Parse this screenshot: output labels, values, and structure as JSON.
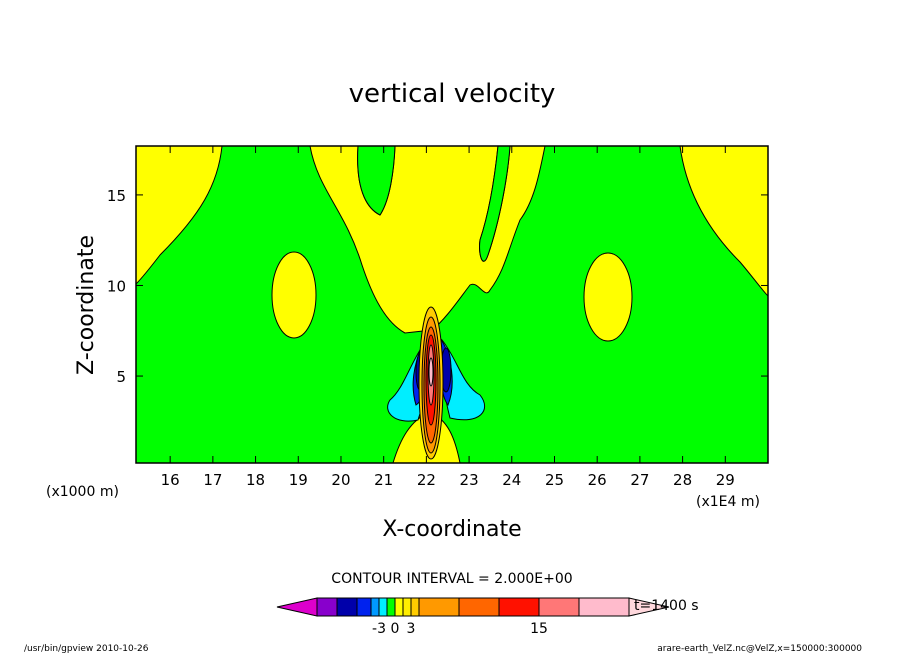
{
  "chart_data": {
    "type": "contour",
    "title": "vertical velocity",
    "xlabel": "X-coordinate",
    "ylabel": "Z-coordinate",
    "x_unit_left": "(x1000 m)",
    "x_unit_right": "(x1E4 m)",
    "xlim": [
      15.2,
      30.0
    ],
    "ylim": [
      0.2,
      17.7
    ],
    "x_ticks": [
      "16",
      "17",
      "18",
      "19",
      "20",
      "21",
      "22",
      "23",
      "24",
      "25",
      "26",
      "27",
      "28",
      "29"
    ],
    "y_ticks": [
      "5",
      "10",
      "15"
    ],
    "contour_interval": "CONTOUR INTERVAL = 2.000E+00",
    "time_label": "t=1400 s",
    "colorbar_labels": [
      "-3",
      "0",
      "3",
      "15"
    ],
    "colorbar_colors": [
      "#dd00cc",
      "#8800cc",
      "#0000aa",
      "#0022ee",
      "#0099ff",
      "#00eeff",
      "#00ff00",
      "#ffff00",
      "#ffee00",
      "#ffcc00",
      "#ff9900",
      "#ff6600",
      "#ff1100",
      "#ff7777",
      "#ffbbcc",
      "#ffd8dd"
    ],
    "colors": {
      "background_zero": "#00ff00",
      "positive_weak": "#ffff00",
      "positive_mid": "#ffcc00",
      "positive_strong": "#ff6600",
      "positive_peak": "#ff1100",
      "positive_core": "#ff7777",
      "negative_weak": "#00eeff",
      "negative_mid": "#0022ee",
      "negative_strong": "#0000aa"
    },
    "regions": [
      {
        "name": "upper-left-updraft",
        "sign": "positive"
      },
      {
        "name": "upper-right-updraft",
        "sign": "positive"
      },
      {
        "name": "left-cell",
        "sign": "positive",
        "center": [
          18.8,
          9.6
        ]
      },
      {
        "name": "right-cell",
        "sign": "positive",
        "center": [
          26.0,
          9.6
        ]
      },
      {
        "name": "central-plume",
        "sign": "positive",
        "center": [
          22.0,
          5.0
        ]
      },
      {
        "name": "downdraft-left",
        "sign": "negative",
        "center": [
          21.5,
          4.5
        ]
      },
      {
        "name": "downdraft-right",
        "sign": "negative",
        "center": [
          22.5,
          4.5
        ]
      }
    ]
  },
  "footer": {
    "left": "/usr/bin/gpview  2010-10-26",
    "right": "arare-earth_VelZ.nc@VelZ,x=150000:300000"
  }
}
